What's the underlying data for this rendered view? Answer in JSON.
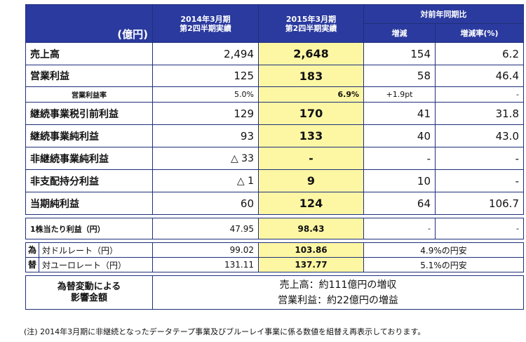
{
  "header": {
    "unit": "(億円)",
    "col1_line1": "2014年3月期",
    "col1_line2": "第2四半期実績",
    "col2_line1": "2015年3月期",
    "col2_line2": "第2四半期実績",
    "yoy": "対前年同期比",
    "diff": "増減",
    "diff_pct": "増減率(%)"
  },
  "rows": {
    "sales": {
      "label": "売上高",
      "prev": "2,494",
      "cur": "2,648",
      "diff": "154",
      "pct": "6.2"
    },
    "op_income": {
      "label": "営業利益",
      "prev": "125",
      "cur": "183",
      "diff": "58",
      "pct": "46.4"
    },
    "op_margin": {
      "label": "営業利益率",
      "prev": "5.0%",
      "cur": "6.9%",
      "diff": "+1.9pt",
      "pct": "-"
    },
    "pretax": {
      "label": "継続事業税引前利益",
      "prev": "129",
      "cur": "170",
      "diff": "41",
      "pct": "31.8"
    },
    "cont_net": {
      "label": "継続事業純利益",
      "prev": "93",
      "cur": "133",
      "diff": "40",
      "pct": "43.0"
    },
    "discont": {
      "label": "非継続事業純利益",
      "prev": "△ 33",
      "cur": "-",
      "diff": "-",
      "pct": "-"
    },
    "minority": {
      "label": "非支配持分利益",
      "prev": "△ 1",
      "cur": "9",
      "diff": "10",
      "pct": "-"
    },
    "net": {
      "label": "当期純利益",
      "prev": "60",
      "cur": "124",
      "diff": "64",
      "pct": "106.7"
    }
  },
  "eps": {
    "label": "1株当たり利益（円）",
    "prev": "47.95",
    "cur": "98.43",
    "diff": "-",
    "pct": "-"
  },
  "fx": {
    "side_top": "為",
    "side_bottom": "替",
    "usd": {
      "label": "対ドルレート（円）",
      "prev": "99.02",
      "cur": "103.86",
      "change": "4.9%の円安"
    },
    "eur": {
      "label": "対ユーロレート（円）",
      "prev": "131.11",
      "cur": "137.77",
      "change": "5.1%の円安"
    }
  },
  "impact": {
    "label_line1": "為替変動による",
    "label_line2": "影響金額",
    "sales": "売上高：約111億円の増収",
    "op": "営業利益：約22億円の増益"
  },
  "note": "(注) 2014年3月期に非継続となったデータテープ事業及びブルーレイ事業に係る数値を組替え再表示しております。"
}
